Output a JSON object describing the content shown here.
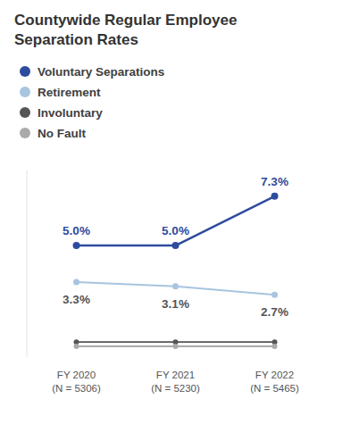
{
  "chart_data": {
    "type": "line",
    "title": "Countywide Regular Employee\nSeparation Rates",
    "categories": [
      "FY 2020\n(N = 5306)",
      "FY 2021\n(N = 5230)",
      "FY 2022\n(N = 5465)"
    ],
    "series": [
      {
        "name": "Voluntary Separations",
        "color": "#2E4C9E",
        "marker": "circle",
        "values": [
          5.0,
          5.0,
          7.3
        ],
        "data_labels": true,
        "value_labels": [
          "5.0%",
          "5.0%",
          "7.3%"
        ]
      },
      {
        "name": "Retirement",
        "color": "#A8C4E0",
        "marker": "circle",
        "values": [
          3.3,
          3.1,
          2.7
        ],
        "data_labels": true,
        "value_labels": [
          "3.3%",
          "3.1%",
          "2.7%"
        ]
      },
      {
        "name": "Involuntary",
        "color": "#555555",
        "marker": "circle",
        "values": [
          0.5,
          0.5,
          0.5
        ],
        "data_labels": false
      },
      {
        "name": "No Fault",
        "color": "#AAAAAA",
        "marker": "circle",
        "values": [
          0.3,
          0.3,
          0.3
        ],
        "data_labels": false
      }
    ],
    "ylim": [
      -0.2,
      8.5
    ],
    "grid": false,
    "legend": "top left",
    "tick_labels": "x"
  }
}
